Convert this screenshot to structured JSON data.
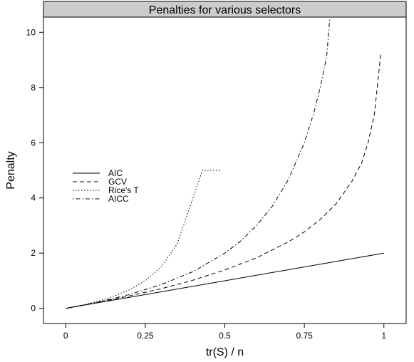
{
  "chart_data": {
    "type": "line",
    "title": "Penalties for various selectors",
    "xlabel": "tr(S) / n",
    "ylabel": "Penalty",
    "xlim": [
      -0.07,
      1.07
    ],
    "ylim": [
      -0.55,
      10.55
    ],
    "x_ticks": [
      0,
      0.25,
      0.5,
      0.75,
      1
    ],
    "x_tick_labels": [
      "0",
      "0.25",
      "0.5",
      "0.75",
      "1"
    ],
    "y_ticks": [
      0,
      2,
      4,
      6,
      8,
      10
    ],
    "y_tick_labels": [
      "0",
      "2",
      "4",
      "6",
      "8",
      "10"
    ],
    "grid": false,
    "legend_position": "left",
    "colors": {
      "line": "#000000",
      "strip": "#cccccc",
      "frame": "#000000"
    },
    "series": [
      {
        "name": "AIC",
        "dash": "solid",
        "x": [
          0,
          0.1,
          0.2,
          0.3,
          0.4,
          0.5,
          0.6,
          0.7,
          0.8,
          0.9,
          1.0
        ],
        "y": [
          0,
          0.2,
          0.4,
          0.6,
          0.8,
          1.0,
          1.2,
          1.4,
          1.6,
          1.8,
          2.0
        ]
      },
      {
        "name": "GCV",
        "dash": "dashed",
        "x": [
          0,
          0.1,
          0.2,
          0.3,
          0.4,
          0.5,
          0.6,
          0.7,
          0.75,
          0.8,
          0.85,
          0.9,
          0.93,
          0.95,
          0.97,
          0.99
        ],
        "y": [
          0,
          0.21,
          0.45,
          0.71,
          1.02,
          1.39,
          1.83,
          2.41,
          2.77,
          3.22,
          3.79,
          4.61,
          5.26,
          5.99,
          7.02,
          9.21
        ]
      },
      {
        "name": "Rice's T",
        "dash": "dotted",
        "x": [
          0,
          0.05,
          0.1,
          0.15,
          0.2,
          0.25,
          0.3,
          0.35,
          0.4,
          0.43,
          0.45,
          0.47,
          0.49
        ],
        "y": [
          0,
          0.11,
          0.25,
          0.43,
          0.67,
          1.0,
          1.5,
          2.33,
          4.0,
          5.0,
          5.0,
          5.0,
          5.0
        ]
      },
      {
        "name": "AICC",
        "dash": "dashdot",
        "x": [
          0,
          0.1,
          0.2,
          0.3,
          0.4,
          0.5,
          0.55,
          0.6,
          0.65,
          0.7,
          0.75,
          0.78,
          0.8,
          0.82,
          0.83
        ],
        "y": [
          0,
          0.22,
          0.5,
          0.86,
          1.33,
          2.0,
          2.44,
          3.0,
          3.71,
          4.67,
          6.0,
          7.09,
          8.0,
          9.11,
          10.5
        ]
      }
    ]
  }
}
